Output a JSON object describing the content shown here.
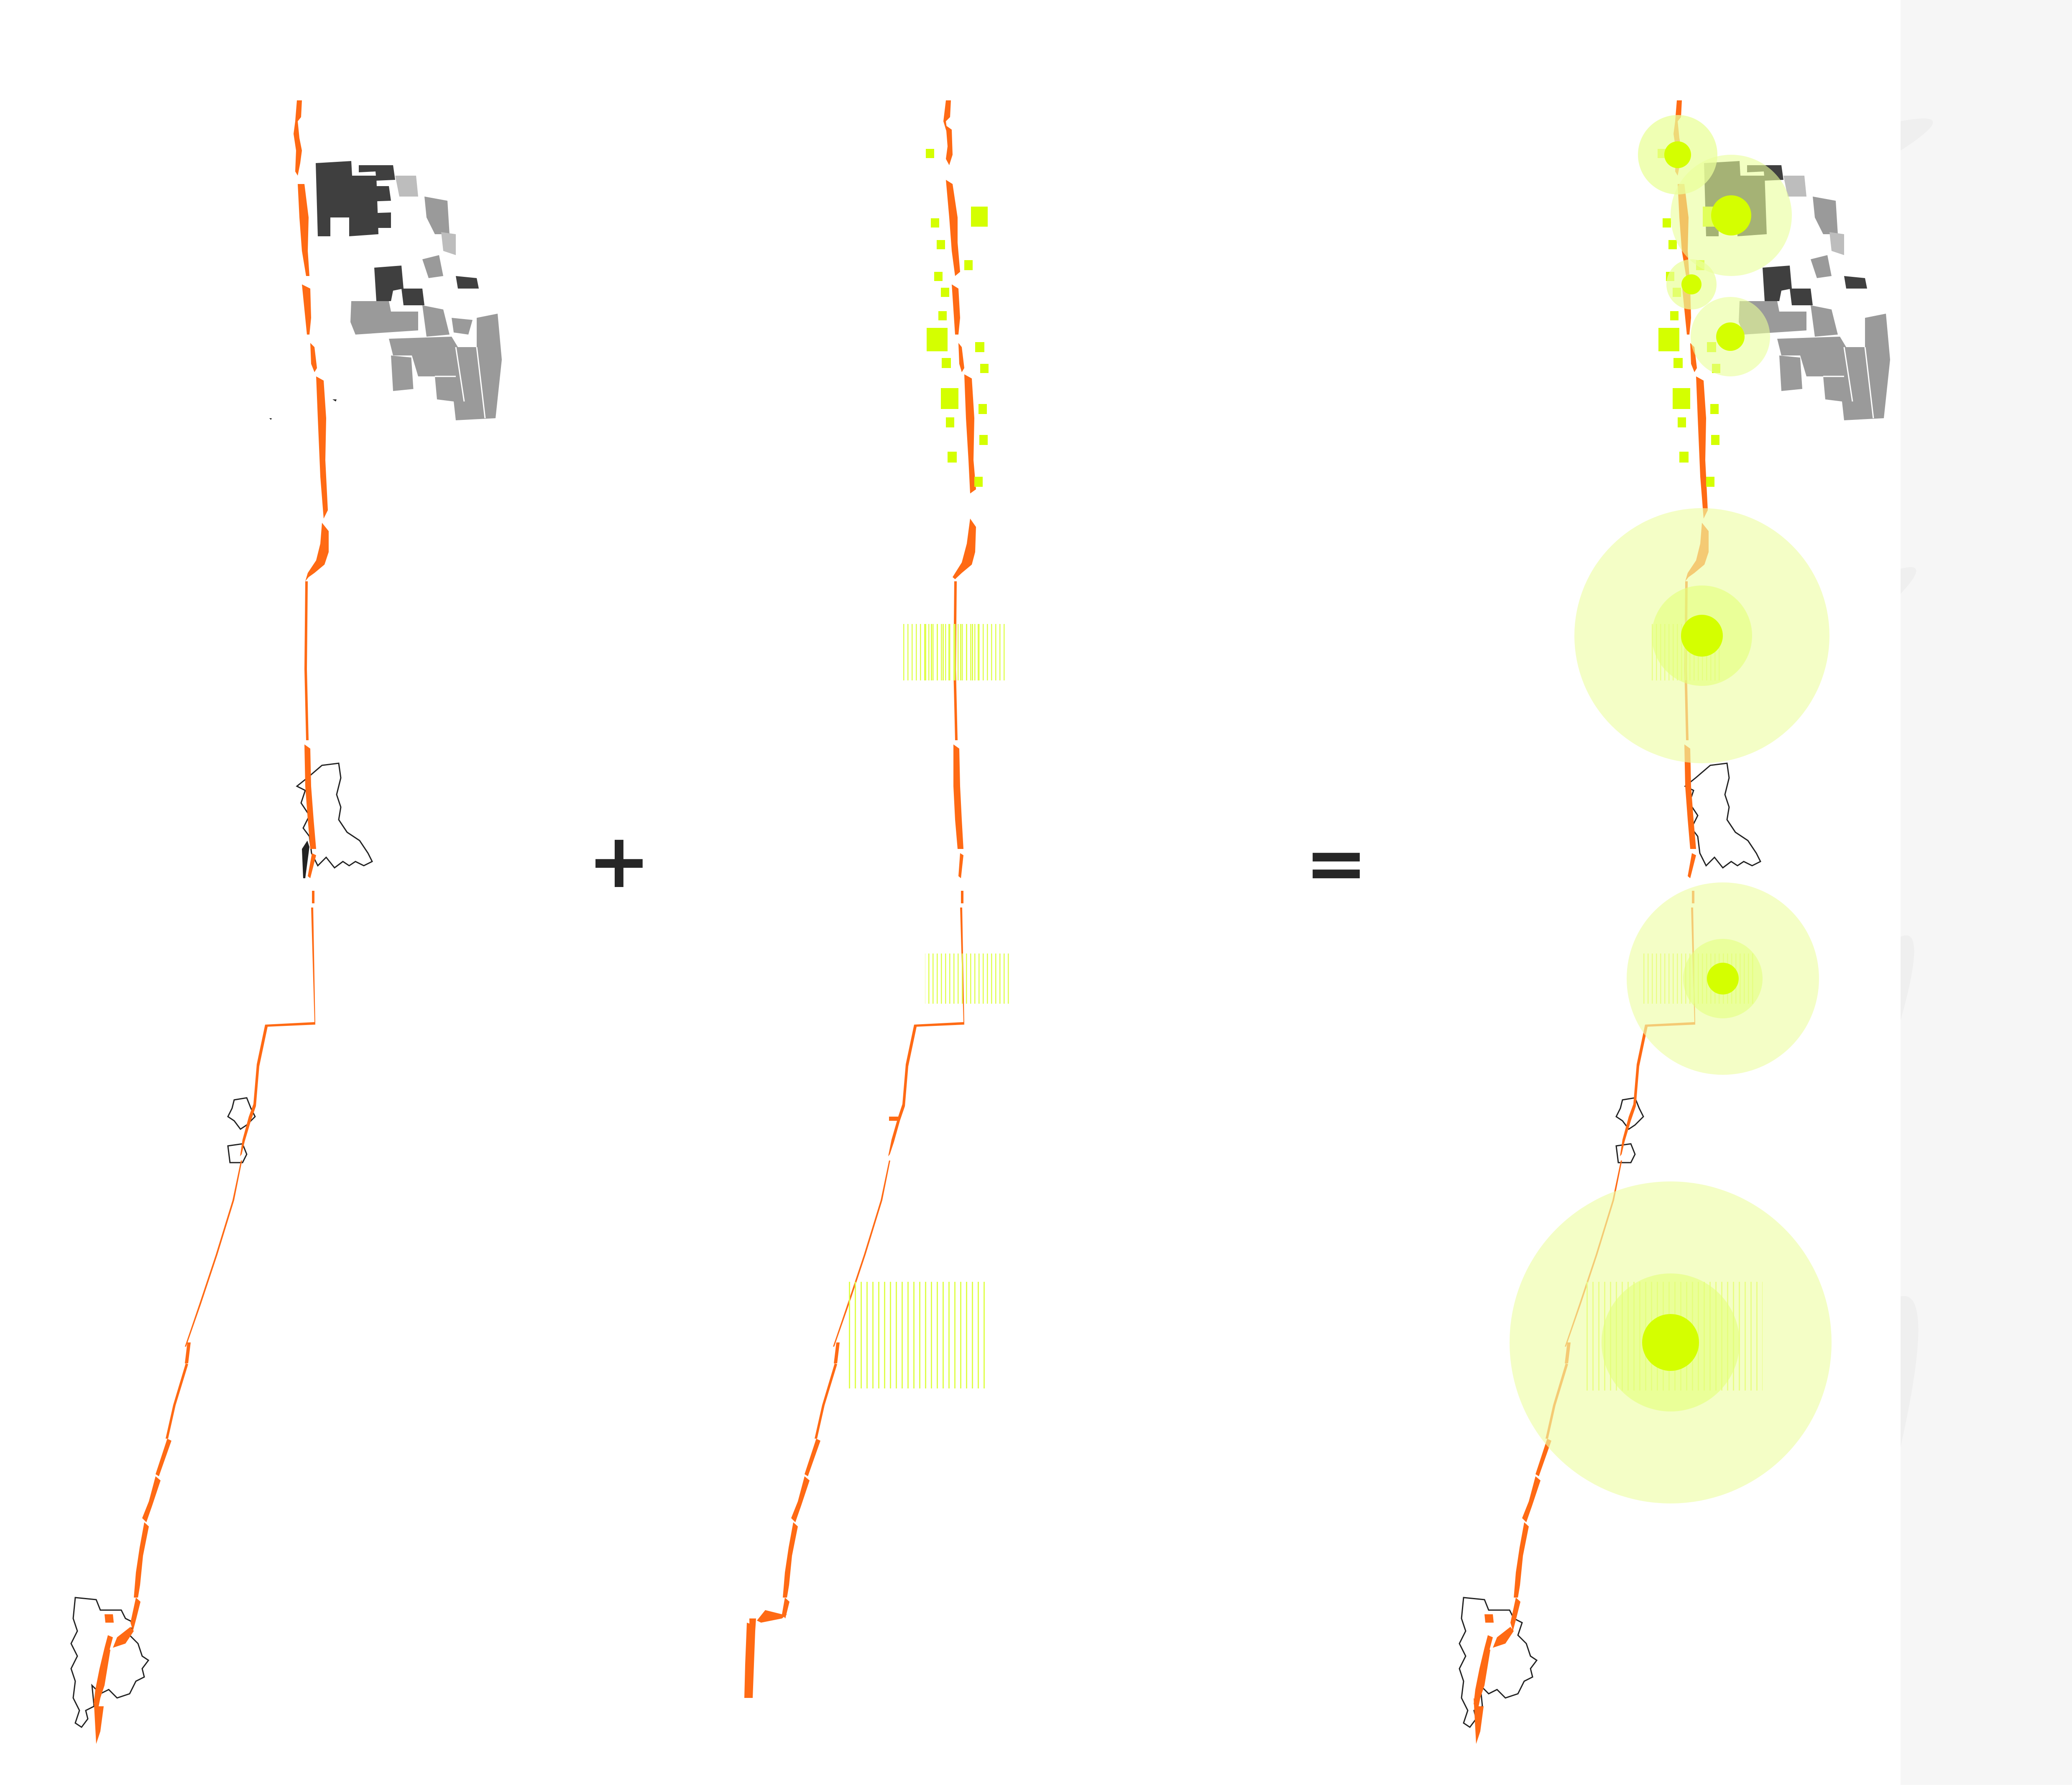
{
  "diagram": {
    "operators": {
      "plus": "+",
      "equals": "="
    },
    "colors": {
      "route": "#ff6a14",
      "route_thin": "#f28a3c",
      "feature": "#d4ff00",
      "feature_hatch": "#e2ff5c",
      "buffer": "#f2ffbf",
      "urban_dark": "#3f3f3f",
      "urban_mid": "#9a9a9a",
      "urban_light": "#c4c4c4",
      "outline": "#222222",
      "side_panel": "#f5f5f5"
    },
    "icons": [
      "plus-sign-icon",
      "equals-sign-icon"
    ]
  }
}
